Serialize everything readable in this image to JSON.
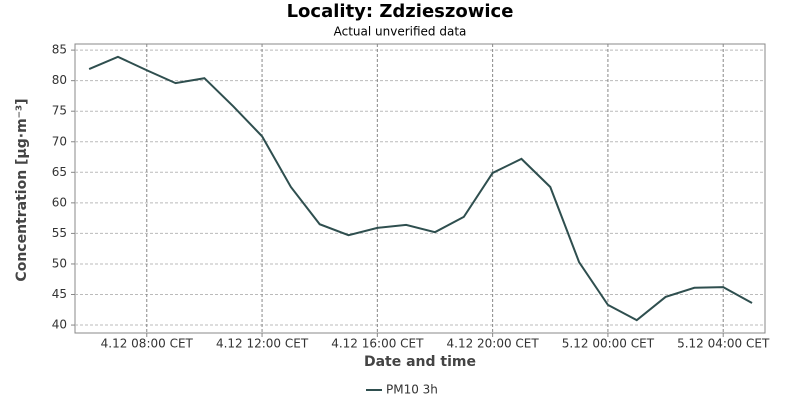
{
  "chart_data": {
    "type": "line",
    "title": "Locality: Zdzieszowice",
    "subtitle": "Actual unverified data",
    "x_label": "Date and time",
    "y_label": "Concentration [µg·m⁻³]",
    "categories": [
      null,
      null,
      "4.12 08:00 CET",
      null,
      null,
      null,
      "4.12 12:00 CET",
      null,
      null,
      null,
      "4.12 16:00 CET",
      null,
      null,
      null,
      "4.12 20:00 CET",
      null,
      null,
      null,
      "5.12 00:00 CET",
      null,
      null,
      null,
      "5.12 04:00 CET",
      null
    ],
    "series": [
      {
        "name": "PM10 3h",
        "color": "#2f4f4f",
        "values": [
          81.9,
          83.9,
          81.7,
          79.6,
          80.4,
          75.8,
          70.9,
          62.6,
          56.5,
          54.7,
          55.9,
          56.4,
          55.2,
          57.7,
          64.9,
          67.2,
          62.6,
          50.3,
          43.3,
          40.8,
          44.6,
          46.1,
          46.2,
          43.6
        ]
      }
    ],
    "ylim": [
      38.7,
      86
    ],
    "yticks": [
      40,
      45,
      50,
      55,
      60,
      65,
      70,
      75,
      80,
      85
    ],
    "grid": true
  }
}
